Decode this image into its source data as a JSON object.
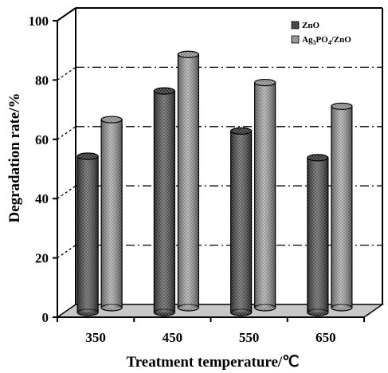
{
  "chart_data": {
    "type": "bar",
    "categories": [
      "350",
      "450",
      "550",
      "650"
    ],
    "series": [
      {
        "name": "ZnO",
        "values": [
          53.5,
          75.5,
          62,
          53
        ]
      },
      {
        "name": "Ag3PO4/ZnO",
        "values": [
          64.5,
          86.5,
          77,
          69
        ]
      }
    ],
    "legend": {
      "zno": "ZnO",
      "composite": {
        "prefix": "Ag",
        "sub1": "3",
        "mid": "PO",
        "sub2": "4",
        "suffix": "/ZnO"
      }
    },
    "xlabel": "Treatment temperature/℃",
    "ylabel": "Degradation rate/%",
    "ylim": [
      0,
      100
    ],
    "yticks": [
      0,
      20,
      40,
      60,
      80,
      100
    ],
    "grid": "dash-dot horizontal on back wall",
    "legend_position": "top-right",
    "colors": {
      "zno": "#555555",
      "composite": "#a8a8a8",
      "floor": "#c8c8c8"
    }
  }
}
